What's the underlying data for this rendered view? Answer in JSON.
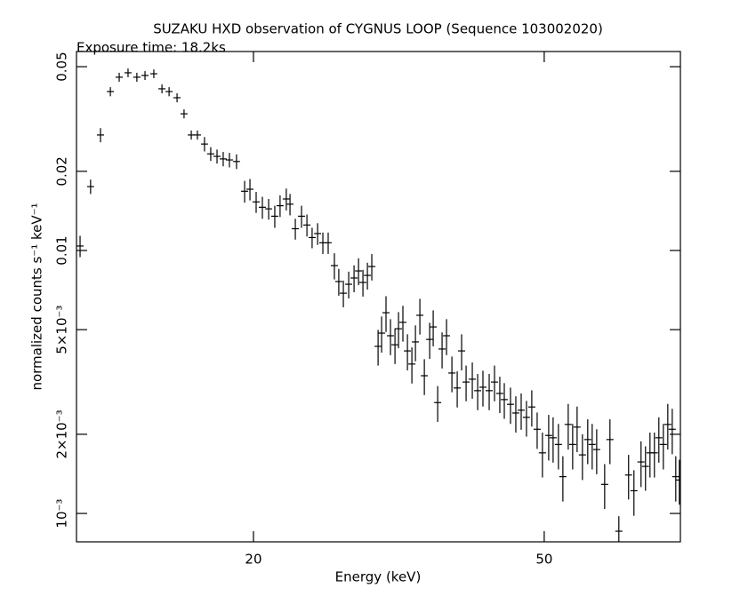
{
  "chart_data": {
    "type": "errorbar",
    "title": "SUZAKU HXD observation of CYGNUS LOOP (Sequence 103002020)",
    "subtitle": "Exposure time: 18.2ks",
    "x_label": "Energy (keV)",
    "y_label": "normalized counts s⁻¹ keV⁻¹",
    "x_scale": "log",
    "y_scale": "log",
    "color": "#000000",
    "xlim": [
      11.45,
      76.8
    ],
    "ylim": [
      0.00078,
      0.0571
    ],
    "xticks": [
      20,
      50
    ],
    "yticks": [
      0.05,
      0.02,
      0.01,
      {
        "value": 0.005,
        "label": "5×10⁻³"
      },
      {
        "value": 0.002,
        "label": "2×10⁻³"
      },
      {
        "value": 0.001,
        "label": "10⁻³"
      }
    ],
    "x": [
      11.58,
      11.97,
      12.35,
      12.74,
      13.1,
      13.47,
      13.85,
      14.21,
      14.61,
      14.99,
      15.33,
      15.72,
      16.07,
      16.44,
      16.76,
      17.14,
      17.48,
      17.83,
      18.18,
      18.54,
      18.96,
      19.45,
      19.78,
      20.17,
      20.57,
      20.98,
      21.39,
      21.75,
      22.18,
      22.44,
      22.82,
      23.27,
      23.67,
      24.06,
      24.48,
      24.89,
      25.31,
      25.81,
      26.17,
      26.55,
      27.0,
      27.46,
      27.85,
      28.24,
      28.64,
      29.04,
      29.62,
      29.95,
      30.37,
      30.8,
      31.24,
      31.59,
      32.03,
      32.49,
      32.95,
      33.32,
      33.79,
      34.27,
      34.85,
      35.24,
      35.74,
      36.24,
      36.75,
      37.38,
      38.01,
      38.54,
      39.09,
      39.86,
      40.54,
      41.22,
      42.04,
      42.75,
      43.47,
      44.09,
      44.96,
      45.72,
      46.5,
      47.28,
      48.08,
      48.9,
      49.72,
      50.71,
      51.42,
      52.29,
      53.03,
      53.93,
      54.69,
      55.46,
      56.4,
      57.35,
      58.16,
      58.99,
      60.49,
      61.51,
      63.26,
      65.23,
      66.34,
      67.84,
      68.8,
      69.78,
      70.76,
      71.76,
      72.78,
      73.81,
      74.85,
      75.69,
      76.55
    ],
    "xerr": [
      0.13,
      0.13,
      0.14,
      0.14,
      0.15,
      0.15,
      0.16,
      0.16,
      0.16,
      0.17,
      0.17,
      0.18,
      0.18,
      0.18,
      0.19,
      0.19,
      0.2,
      0.2,
      0.2,
      0.21,
      0.21,
      0.22,
      0.22,
      0.23,
      0.23,
      0.23,
      0.24,
      0.24,
      0.25,
      0.25,
      0.26,
      0.26,
      0.27,
      0.27,
      0.27,
      0.28,
      0.28,
      0.29,
      0.29,
      0.3,
      0.3,
      0.31,
      0.31,
      0.32,
      0.32,
      0.33,
      0.33,
      0.34,
      0.34,
      0.34,
      0.35,
      0.35,
      0.36,
      0.36,
      0.37,
      0.37,
      0.38,
      0.38,
      0.39,
      0.39,
      0.4,
      0.41,
      0.41,
      0.42,
      0.43,
      0.43,
      0.44,
      0.45,
      0.45,
      0.46,
      0.47,
      0.48,
      0.49,
      0.49,
      0.5,
      0.51,
      0.52,
      0.53,
      0.54,
      0.55,
      0.56,
      0.57,
      0.58,
      0.59,
      0.59,
      0.6,
      0.61,
      0.62,
      0.63,
      0.64,
      0.65,
      0.66,
      0.68,
      0.69,
      0.71,
      0.73,
      0.74,
      0.76,
      0.77,
      0.78,
      0.79,
      0.8,
      0.82,
      0.83,
      0.84,
      0.85,
      0.86
    ],
    "values": [
      0.0104,
      0.0175,
      0.0275,
      0.0402,
      0.0456,
      0.0474,
      0.0456,
      0.0463,
      0.047,
      0.0412,
      0.0402,
      0.0381,
      0.0331,
      0.0275,
      0.0275,
      0.0254,
      0.0233,
      0.0228,
      0.0223,
      0.0221,
      0.0218,
      0.0168,
      0.0171,
      0.0153,
      0.0146,
      0.0144,
      0.0135,
      0.0148,
      0.0157,
      0.015,
      0.0121,
      0.0135,
      0.0125,
      0.0112,
      0.0116,
      0.0107,
      0.0107,
      0.00876,
      0.00762,
      0.00688,
      0.00744,
      0.00786,
      0.00836,
      0.00756,
      0.00804,
      0.00869,
      0.00432,
      0.00485,
      0.0058,
      0.00474,
      0.00438,
      0.00504,
      0.00533,
      0.00415,
      0.0037,
      0.00449,
      0.00567,
      0.00334,
      0.00459,
      0.00512,
      0.00264,
      0.00422,
      0.00474,
      0.00342,
      0.003,
      0.00415,
      0.00316,
      0.00324,
      0.00293,
      0.00302,
      0.00293,
      0.00316,
      0.00286,
      0.00271,
      0.0026,
      0.00241,
      0.00247,
      0.00232,
      0.00254,
      0.00209,
      0.0017,
      0.00198,
      0.00194,
      0.00183,
      0.00138,
      0.00218,
      0.00183,
      0.00213,
      0.00167,
      0.00191,
      0.00183,
      0.00175,
      0.00129,
      0.00191,
      0.000856,
      0.0014,
      0.00122,
      0.00157,
      0.00151,
      0.0017,
      0.0017,
      0.00194,
      0.00183,
      0.00218,
      0.00209,
      0.00138,
      0.00134
    ],
    "yerr": [
      0.00097,
      0.0011,
      0.0017,
      0.0016,
      0.0018,
      0.0018,
      0.0018,
      0.0018,
      0.0018,
      0.0016,
      0.0016,
      0.0015,
      0.0013,
      0.0011,
      0.0011,
      0.0016,
      0.0014,
      0.0014,
      0.0014,
      0.0014,
      0.0014,
      0.0016,
      0.0016,
      0.0014,
      0.0014,
      0.0013,
      0.0013,
      0.0014,
      0.0015,
      0.0014,
      0.0011,
      0.0013,
      0.0012,
      0.001,
      0.0011,
      0.001,
      0.001,
      0.001,
      0.00089,
      0.0008,
      0.00087,
      0.00092,
      0.00098,
      0.00088,
      0.00094,
      0.001,
      0.00067,
      0.00076,
      0.0009,
      0.00074,
      0.00068,
      0.00079,
      0.00083,
      0.00065,
      0.00058,
      0.0007,
      0.00088,
      0.00052,
      0.00072,
      0.0008,
      0.00041,
      0.00066,
      0.00074,
      0.00053,
      0.00047,
      0.00065,
      0.00049,
      0.00051,
      0.00046,
      0.00047,
      0.00046,
      0.00049,
      0.00045,
      0.00042,
      0.00041,
      0.00038,
      0.00039,
      0.00036,
      0.0004,
      0.00033,
      0.00033,
      0.00039,
      0.00038,
      0.00036,
      0.00027,
      0.00043,
      0.00036,
      0.00042,
      0.00033,
      0.00037,
      0.00036,
      0.00034,
      0.00025,
      0.00037,
      0.00012,
      0.00027,
      0.00024,
      0.00031,
      0.00029,
      0.00033,
      0.00033,
      0.00038,
      0.00036,
      0.00043,
      0.00041,
      0.00027,
      0.00026
    ]
  }
}
